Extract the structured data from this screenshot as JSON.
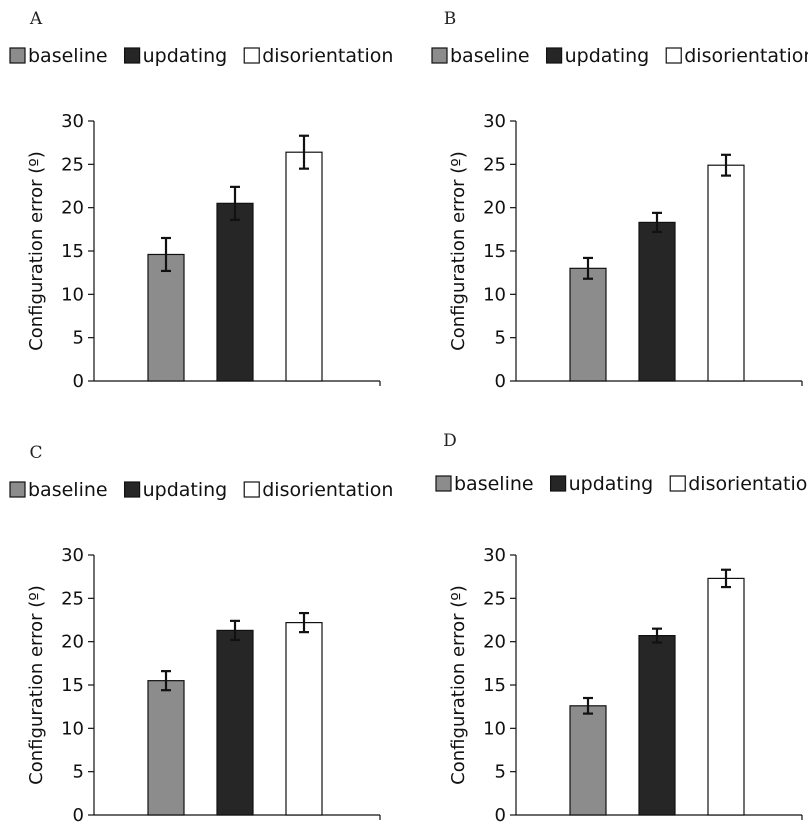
{
  "colors": {
    "baseline": "#8c8c8c",
    "updating": "#262626",
    "disorientation": "#ffffff",
    "axis": "#111111"
  },
  "chart_data": [
    {
      "panel": "A",
      "type": "bar",
      "legend": [
        "baseline",
        "updating",
        "disorientation"
      ],
      "categories": [
        "baseline",
        "updating",
        "disorientation"
      ],
      "values": [
        14.6,
        20.5,
        26.4
      ],
      "errors": [
        1.9,
        1.9,
        1.9
      ],
      "ylabel": "Configuration error (º)",
      "ylim": [
        0,
        30
      ],
      "yticks": [
        "0",
        "5",
        "10",
        "15",
        "20",
        "25",
        "30"
      ],
      "grid": false,
      "legend_position": "top"
    },
    {
      "panel": "B",
      "type": "bar",
      "legend": [
        "baseline",
        "updating",
        "disorientation"
      ],
      "categories": [
        "baseline",
        "updating",
        "disorientation"
      ],
      "values": [
        13.0,
        18.3,
        24.9
      ],
      "errors": [
        1.2,
        1.1,
        1.2
      ],
      "ylabel": "Configuration error (º)",
      "ylim": [
        0,
        30
      ],
      "yticks": [
        "0",
        "5",
        "10",
        "15",
        "20",
        "25",
        "30"
      ],
      "grid": false,
      "legend_position": "top"
    },
    {
      "panel": "C",
      "type": "bar",
      "legend": [
        "baseline",
        "updating",
        "disorientation"
      ],
      "categories": [
        "baseline",
        "updating",
        "disorientation"
      ],
      "values": [
        15.5,
        21.3,
        22.2
      ],
      "errors": [
        1.1,
        1.1,
        1.1
      ],
      "ylabel": "Configuration error (º)",
      "ylim": [
        0,
        30
      ],
      "yticks": [
        "0",
        "5",
        "10",
        "15",
        "20",
        "25",
        "30"
      ],
      "grid": false,
      "legend_position": "top"
    },
    {
      "panel": "D",
      "type": "bar",
      "legend": [
        "baseline",
        "updating",
        "disorientation"
      ],
      "categories": [
        "baseline",
        "updating",
        "disorientation"
      ],
      "values": [
        12.6,
        20.7,
        27.3
      ],
      "errors": [
        0.9,
        0.8,
        1.0
      ],
      "ylabel": "Configuration error (º)",
      "ylim": [
        0,
        30
      ],
      "yticks": [
        "0",
        "5",
        "10",
        "15",
        "20",
        "25",
        "30"
      ],
      "grid": false,
      "legend_position": "top"
    }
  ]
}
